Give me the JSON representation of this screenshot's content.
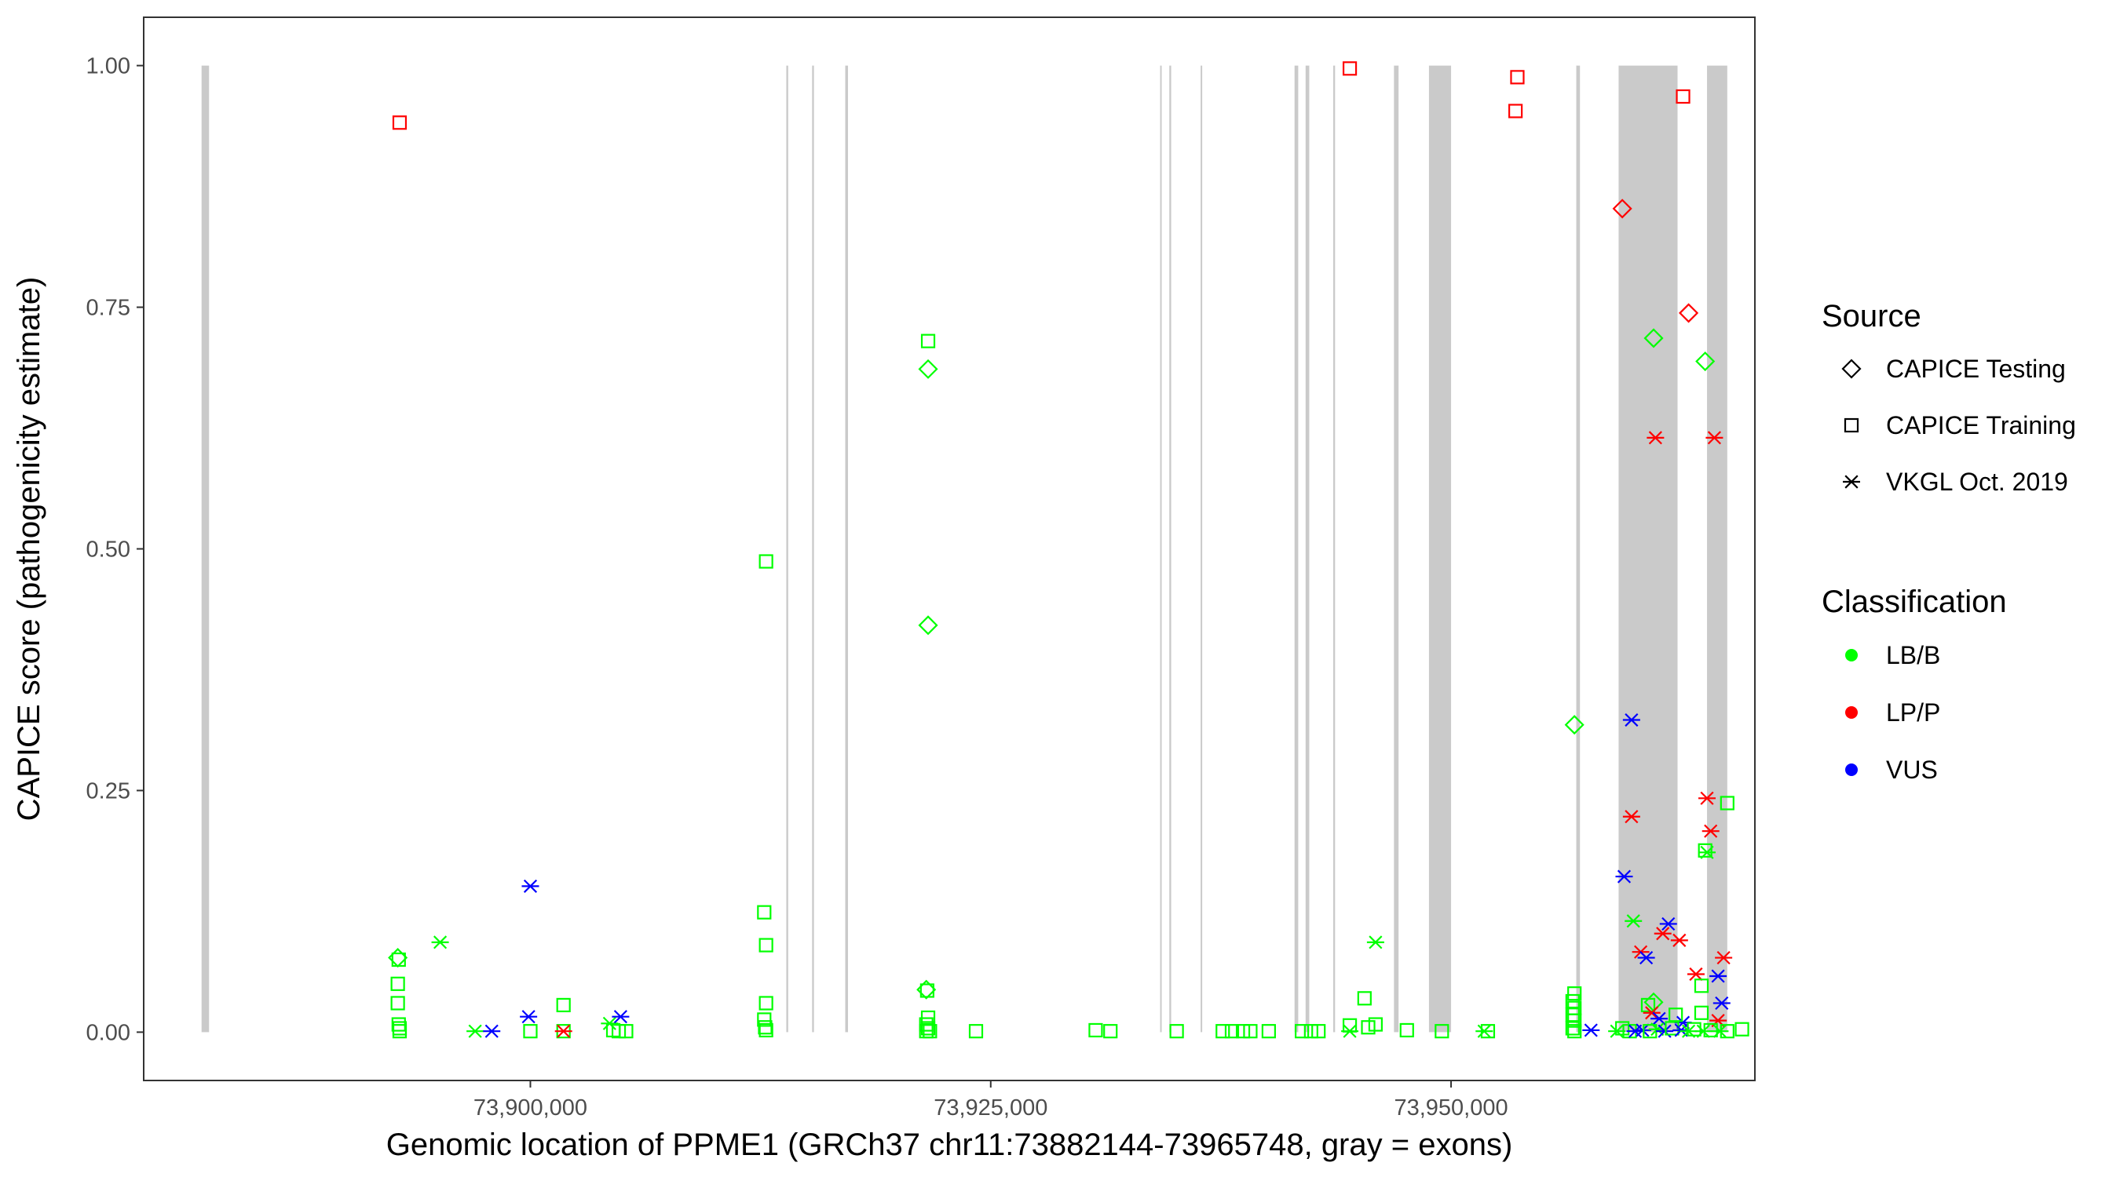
{
  "chart_data": {
    "type": "scatter",
    "xlabel": "Genomic location of PPME1 (GRCh37 chr11:73882144-73965748, gray = exons)",
    "ylabel": "CAPICE score (pathogenicity estimate)",
    "xlim": [
      73879000,
      73966500
    ],
    "ylim": [
      -0.05,
      1.05
    ],
    "x_ticks": [
      73900000,
      73925000,
      73950000
    ],
    "x_tick_labels": [
      "73,900,000",
      "73,925,000",
      "73,950,000"
    ],
    "y_ticks": [
      0,
      0.25,
      0.5,
      0.75,
      1
    ],
    "y_tick_labels": [
      "0.00",
      "0.25",
      "0.50",
      "0.75",
      "1.00"
    ],
    "grid": false,
    "legend_position": "right",
    "legends": {
      "source": {
        "title": "Source",
        "items": [
          {
            "label": "CAPICE Testing",
            "shape": "diamond"
          },
          {
            "label": "CAPICE Training",
            "shape": "square"
          },
          {
            "label": "VKGL Oct. 2019",
            "shape": "asterisk"
          }
        ]
      },
      "classification": {
        "title": "Classification",
        "items": [
          {
            "label": "LB/B",
            "color": "#00ff00"
          },
          {
            "label": "LP/P",
            "color": "#ff0000"
          },
          {
            "label": "VUS",
            "color": "#0000ff"
          }
        ]
      }
    },
    "exons": [
      [
        73882144,
        73882550
      ],
      [
        73913900,
        73914000
      ],
      [
        73915300,
        73915400
      ],
      [
        73917100,
        73917250
      ],
      [
        73934200,
        73934250
      ],
      [
        73934700,
        73934800
      ],
      [
        73936400,
        73936450
      ],
      [
        73941500,
        73941700
      ],
      [
        73942100,
        73942300
      ],
      [
        73943600,
        73943700
      ],
      [
        73946900,
        73947150
      ],
      [
        73948800,
        73950000
      ],
      [
        73956800,
        73957000
      ],
      [
        73959100,
        73962300
      ],
      [
        73963900,
        73965000
      ]
    ],
    "points": [
      {
        "x": 73892900,
        "y": 0.941,
        "source": "CAPICE Training",
        "cls": "LP/P"
      },
      {
        "x": 73892800,
        "y": 0.077,
        "source": "CAPICE Testing",
        "cls": "LB/B"
      },
      {
        "x": 73892850,
        "y": 0.075,
        "source": "CAPICE Training",
        "cls": "LB/B"
      },
      {
        "x": 73892800,
        "y": 0.05,
        "source": "CAPICE Training",
        "cls": "LB/B"
      },
      {
        "x": 73892800,
        "y": 0.03,
        "source": "CAPICE Training",
        "cls": "LB/B"
      },
      {
        "x": 73892850,
        "y": 0.008,
        "source": "CAPICE Training",
        "cls": "LB/B"
      },
      {
        "x": 73892900,
        "y": 0.004,
        "source": "CAPICE Training",
        "cls": "LB/B"
      },
      {
        "x": 73892900,
        "y": 0.001,
        "source": "CAPICE Training",
        "cls": "LB/B"
      },
      {
        "x": 73895100,
        "y": 0.093,
        "source": "VKGL Oct. 2019",
        "cls": "LB/B"
      },
      {
        "x": 73897000,
        "y": 0.001,
        "source": "VKGL Oct. 2019",
        "cls": "LB/B"
      },
      {
        "x": 73897900,
        "y": 0.001,
        "source": "VKGL Oct. 2019",
        "cls": "VUS"
      },
      {
        "x": 73900000,
        "y": 0.151,
        "source": "VKGL Oct. 2019",
        "cls": "VUS"
      },
      {
        "x": 73899900,
        "y": 0.016,
        "source": "VKGL Oct. 2019",
        "cls": "VUS"
      },
      {
        "x": 73900000,
        "y": 0.001,
        "source": "CAPICE Training",
        "cls": "LB/B"
      },
      {
        "x": 73901800,
        "y": 0.028,
        "source": "CAPICE Training",
        "cls": "LB/B"
      },
      {
        "x": 73901800,
        "y": 0.001,
        "source": "CAPICE Training",
        "cls": "LB/B"
      },
      {
        "x": 73901800,
        "y": 0.001,
        "source": "VKGL Oct. 2019",
        "cls": "LP/P"
      },
      {
        "x": 73904300,
        "y": 0.009,
        "source": "VKGL Oct. 2019",
        "cls": "LB/B"
      },
      {
        "x": 73904500,
        "y": 0.002,
        "source": "CAPICE Training",
        "cls": "LB/B"
      },
      {
        "x": 73904800,
        "y": 0.001,
        "source": "CAPICE Training",
        "cls": "LB/B"
      },
      {
        "x": 73905200,
        "y": 0.001,
        "source": "CAPICE Training",
        "cls": "LB/B"
      },
      {
        "x": 73904900,
        "y": 0.016,
        "source": "VKGL Oct. 2019",
        "cls": "VUS"
      },
      {
        "x": 73912800,
        "y": 0.487,
        "source": "CAPICE Training",
        "cls": "LB/B"
      },
      {
        "x": 73912700,
        "y": 0.124,
        "source": "CAPICE Training",
        "cls": "LB/B"
      },
      {
        "x": 73912800,
        "y": 0.09,
        "source": "CAPICE Training",
        "cls": "LB/B"
      },
      {
        "x": 73912800,
        "y": 0.03,
        "source": "CAPICE Training",
        "cls": "LB/B"
      },
      {
        "x": 73912700,
        "y": 0.013,
        "source": "CAPICE Training",
        "cls": "LB/B"
      },
      {
        "x": 73912750,
        "y": 0.005,
        "source": "CAPICE Training",
        "cls": "LB/B"
      },
      {
        "x": 73912800,
        "y": 0.002,
        "source": "CAPICE Training",
        "cls": "LB/B"
      },
      {
        "x": 73921600,
        "y": 0.715,
        "source": "CAPICE Training",
        "cls": "LB/B"
      },
      {
        "x": 73921600,
        "y": 0.686,
        "source": "CAPICE Testing",
        "cls": "LB/B"
      },
      {
        "x": 73921600,
        "y": 0.421,
        "source": "CAPICE Testing",
        "cls": "LB/B"
      },
      {
        "x": 73921500,
        "y": 0.044,
        "source": "CAPICE Testing",
        "cls": "LB/B"
      },
      {
        "x": 73921550,
        "y": 0.043,
        "source": "CAPICE Training",
        "cls": "LB/B"
      },
      {
        "x": 73921600,
        "y": 0.015,
        "source": "CAPICE Training",
        "cls": "LB/B"
      },
      {
        "x": 73921500,
        "y": 0.008,
        "source": "CAPICE Training",
        "cls": "LB/B"
      },
      {
        "x": 73921600,
        "y": 0.004,
        "source": "CAPICE Training",
        "cls": "LB/B"
      },
      {
        "x": 73921500,
        "y": 0.001,
        "source": "CAPICE Training",
        "cls": "LB/B"
      },
      {
        "x": 73921700,
        "y": 0.001,
        "source": "CAPICE Training",
        "cls": "LB/B"
      },
      {
        "x": 73924200,
        "y": 0.001,
        "source": "CAPICE Training",
        "cls": "LB/B"
      },
      {
        "x": 73930700,
        "y": 0.002,
        "source": "CAPICE Training",
        "cls": "LB/B"
      },
      {
        "x": 73931500,
        "y": 0.001,
        "source": "CAPICE Training",
        "cls": "LB/B"
      },
      {
        "x": 73935100,
        "y": 0.001,
        "source": "CAPICE Training",
        "cls": "LB/B"
      },
      {
        "x": 73937600,
        "y": 0.001,
        "source": "CAPICE Training",
        "cls": "LB/B"
      },
      {
        "x": 73938100,
        "y": 0.001,
        "source": "CAPICE Training",
        "cls": "LB/B"
      },
      {
        "x": 73938700,
        "y": 0.001,
        "source": "CAPICE Training",
        "cls": "LB/B"
      },
      {
        "x": 73939100,
        "y": 0.001,
        "source": "CAPICE Training",
        "cls": "LB/B"
      },
      {
        "x": 73940100,
        "y": 0.001,
        "source": "CAPICE Training",
        "cls": "LB/B"
      },
      {
        "x": 73941900,
        "y": 0.001,
        "source": "CAPICE Training",
        "cls": "LB/B"
      },
      {
        "x": 73942400,
        "y": 0.001,
        "source": "CAPICE Training",
        "cls": "LB/B"
      },
      {
        "x": 73942800,
        "y": 0.001,
        "source": "CAPICE Training",
        "cls": "LB/B"
      },
      {
        "x": 73944500,
        "y": 0.997,
        "source": "CAPICE Training",
        "cls": "LP/P"
      },
      {
        "x": 73944500,
        "y": 0.007,
        "source": "CAPICE Training",
        "cls": "LB/B"
      },
      {
        "x": 73944500,
        "y": 0.001,
        "source": "VKGL Oct. 2019",
        "cls": "LB/B"
      },
      {
        "x": 73945300,
        "y": 0.035,
        "source": "CAPICE Training",
        "cls": "LB/B"
      },
      {
        "x": 73945500,
        "y": 0.005,
        "source": "CAPICE Training",
        "cls": "LB/B"
      },
      {
        "x": 73945900,
        "y": 0.008,
        "source": "CAPICE Training",
        "cls": "LB/B"
      },
      {
        "x": 73945900,
        "y": 0.093,
        "source": "VKGL Oct. 2019",
        "cls": "LB/B"
      },
      {
        "x": 73947600,
        "y": 0.002,
        "source": "CAPICE Training",
        "cls": "LB/B"
      },
      {
        "x": 73949500,
        "y": 0.001,
        "source": "CAPICE Training",
        "cls": "LB/B"
      },
      {
        "x": 73951800,
        "y": 0.001,
        "source": "VKGL Oct. 2019",
        "cls": "LB/B"
      },
      {
        "x": 73952000,
        "y": 0.001,
        "source": "CAPICE Training",
        "cls": "LB/B"
      },
      {
        "x": 73953600,
        "y": 0.988,
        "source": "CAPICE Training",
        "cls": "LP/P"
      },
      {
        "x": 73953500,
        "y": 0.953,
        "source": "CAPICE Training",
        "cls": "LP/P"
      },
      {
        "x": 73956700,
        "y": 0.318,
        "source": "CAPICE Testing",
        "cls": "LB/B"
      },
      {
        "x": 73956700,
        "y": 0.04,
        "source": "CAPICE Training",
        "cls": "LB/B"
      },
      {
        "x": 73956600,
        "y": 0.032,
        "source": "CAPICE Training",
        "cls": "LB/B"
      },
      {
        "x": 73956700,
        "y": 0.025,
        "source": "CAPICE Training",
        "cls": "LB/B"
      },
      {
        "x": 73956600,
        "y": 0.018,
        "source": "CAPICE Training",
        "cls": "LB/B"
      },
      {
        "x": 73956700,
        "y": 0.012,
        "source": "CAPICE Training",
        "cls": "LB/B"
      },
      {
        "x": 73956600,
        "y": 0.004,
        "source": "CAPICE Training",
        "cls": "LB/B"
      },
      {
        "x": 73956700,
        "y": 0.001,
        "source": "CAPICE Training",
        "cls": "LB/B"
      },
      {
        "x": 73957600,
        "y": 0.002,
        "source": "VKGL Oct. 2019",
        "cls": "VUS"
      },
      {
        "x": 73959300,
        "y": 0.852,
        "source": "CAPICE Testing",
        "cls": "LP/P"
      },
      {
        "x": 73962900,
        "y": 0.744,
        "source": "CAPICE Testing",
        "cls": "LP/P"
      },
      {
        "x": 73962600,
        "y": 0.968,
        "source": "CAPICE Training",
        "cls": "LP/P"
      },
      {
        "x": 73961000,
        "y": 0.718,
        "source": "CAPICE Testing",
        "cls": "LB/B"
      },
      {
        "x": 73963800,
        "y": 0.694,
        "source": "CAPICE Testing",
        "cls": "LB/B"
      },
      {
        "x": 73961100,
        "y": 0.615,
        "source": "VKGL Oct. 2019",
        "cls": "LP/P"
      },
      {
        "x": 73964300,
        "y": 0.615,
        "source": "VKGL Oct. 2019",
        "cls": "LP/P"
      },
      {
        "x": 73959800,
        "y": 0.323,
        "source": "VKGL Oct. 2019",
        "cls": "VUS"
      },
      {
        "x": 73963900,
        "y": 0.242,
        "source": "VKGL Oct. 2019",
        "cls": "LP/P"
      },
      {
        "x": 73959800,
        "y": 0.223,
        "source": "VKGL Oct. 2019",
        "cls": "LP/P"
      },
      {
        "x": 73965000,
        "y": 0.237,
        "source": "CAPICE Training",
        "cls": "LB/B"
      },
      {
        "x": 73964100,
        "y": 0.208,
        "source": "VKGL Oct. 2019",
        "cls": "LP/P"
      },
      {
        "x": 73963800,
        "y": 0.188,
        "source": "CAPICE Training",
        "cls": "LB/B"
      },
      {
        "x": 73963900,
        "y": 0.186,
        "source": "VKGL Oct. 2019",
        "cls": "LB/B"
      },
      {
        "x": 73959400,
        "y": 0.161,
        "source": "VKGL Oct. 2019",
        "cls": "VUS"
      },
      {
        "x": 73959900,
        "y": 0.115,
        "source": "VKGL Oct. 2019",
        "cls": "LB/B"
      },
      {
        "x": 73961800,
        "y": 0.112,
        "source": "VKGL Oct. 2019",
        "cls": "VUS"
      },
      {
        "x": 73961500,
        "y": 0.102,
        "source": "VKGL Oct. 2019",
        "cls": "LP/P"
      },
      {
        "x": 73962400,
        "y": 0.095,
        "source": "VKGL Oct. 2019",
        "cls": "LP/P"
      },
      {
        "x": 73960300,
        "y": 0.083,
        "source": "VKGL Oct. 2019",
        "cls": "LP/P"
      },
      {
        "x": 73960600,
        "y": 0.077,
        "source": "VKGL Oct. 2019",
        "cls": "VUS"
      },
      {
        "x": 73964800,
        "y": 0.077,
        "source": "VKGL Oct. 2019",
        "cls": "LP/P"
      },
      {
        "x": 73963300,
        "y": 0.06,
        "source": "VKGL Oct. 2019",
        "cls": "LP/P"
      },
      {
        "x": 73964500,
        "y": 0.058,
        "source": "VKGL Oct. 2019",
        "cls": "VUS"
      },
      {
        "x": 73963600,
        "y": 0.048,
        "source": "CAPICE Training",
        "cls": "LB/B"
      },
      {
        "x": 73961000,
        "y": 0.031,
        "source": "CAPICE Testing",
        "cls": "LB/B"
      },
      {
        "x": 73960700,
        "y": 0.028,
        "source": "CAPICE Training",
        "cls": "LB/B"
      },
      {
        "x": 73964700,
        "y": 0.03,
        "source": "VKGL Oct. 2019",
        "cls": "VUS"
      },
      {
        "x": 73960900,
        "y": 0.02,
        "source": "VKGL Oct. 2019",
        "cls": "LP/P"
      },
      {
        "x": 73961300,
        "y": 0.014,
        "source": "VKGL Oct. 2019",
        "cls": "VUS"
      },
      {
        "x": 73964500,
        "y": 0.012,
        "source": "VKGL Oct. 2019",
        "cls": "LP/P"
      },
      {
        "x": 73962600,
        "y": 0.01,
        "source": "VKGL Oct. 2019",
        "cls": "VUS"
      },
      {
        "x": 73962200,
        "y": 0.018,
        "source": "CAPICE Training",
        "cls": "LB/B"
      },
      {
        "x": 73963600,
        "y": 0.02,
        "source": "CAPICE Training",
        "cls": "LB/B"
      },
      {
        "x": 73959300,
        "y": 0.004,
        "source": "CAPICE Training",
        "cls": "LB/B"
      },
      {
        "x": 73959000,
        "y": 0.001,
        "source": "VKGL Oct. 2019",
        "cls": "LB/B"
      },
      {
        "x": 73959700,
        "y": 0.001,
        "source": "CAPICE Training",
        "cls": "LB/B"
      },
      {
        "x": 73960000,
        "y": 0.001,
        "source": "VKGL Oct. 2019",
        "cls": "VUS"
      },
      {
        "x": 73960400,
        "y": 0.002,
        "source": "VKGL Oct. 2019",
        "cls": "VUS"
      },
      {
        "x": 73960800,
        "y": 0.001,
        "source": "CAPICE Training",
        "cls": "LB/B"
      },
      {
        "x": 73961200,
        "y": 0.003,
        "source": "VKGL Oct. 2019",
        "cls": "LB/B"
      },
      {
        "x": 73961600,
        "y": 0.001,
        "source": "VKGL Oct. 2019",
        "cls": "VUS"
      },
      {
        "x": 73962000,
        "y": 0.004,
        "source": "CAPICE Training",
        "cls": "LB/B"
      },
      {
        "x": 73962500,
        "y": 0.002,
        "source": "VKGL Oct. 2019",
        "cls": "VUS"
      },
      {
        "x": 73962900,
        "y": 0.001,
        "source": "VKGL Oct. 2019",
        "cls": "LB/B"
      },
      {
        "x": 73963200,
        "y": 0.003,
        "source": "CAPICE Training",
        "cls": "LB/B"
      },
      {
        "x": 73963700,
        "y": 0.001,
        "source": "VKGL Oct. 2019",
        "cls": "LB/B"
      },
      {
        "x": 73964100,
        "y": 0.002,
        "source": "CAPICE Training",
        "cls": "LB/B"
      },
      {
        "x": 73964600,
        "y": 0.001,
        "source": "VKGL Oct. 2019",
        "cls": "LB/B"
      },
      {
        "x": 73965000,
        "y": 0.001,
        "source": "CAPICE Training",
        "cls": "LB/B"
      },
      {
        "x": 73965800,
        "y": 0.003,
        "source": "CAPICE Training",
        "cls": "LB/B"
      }
    ]
  }
}
